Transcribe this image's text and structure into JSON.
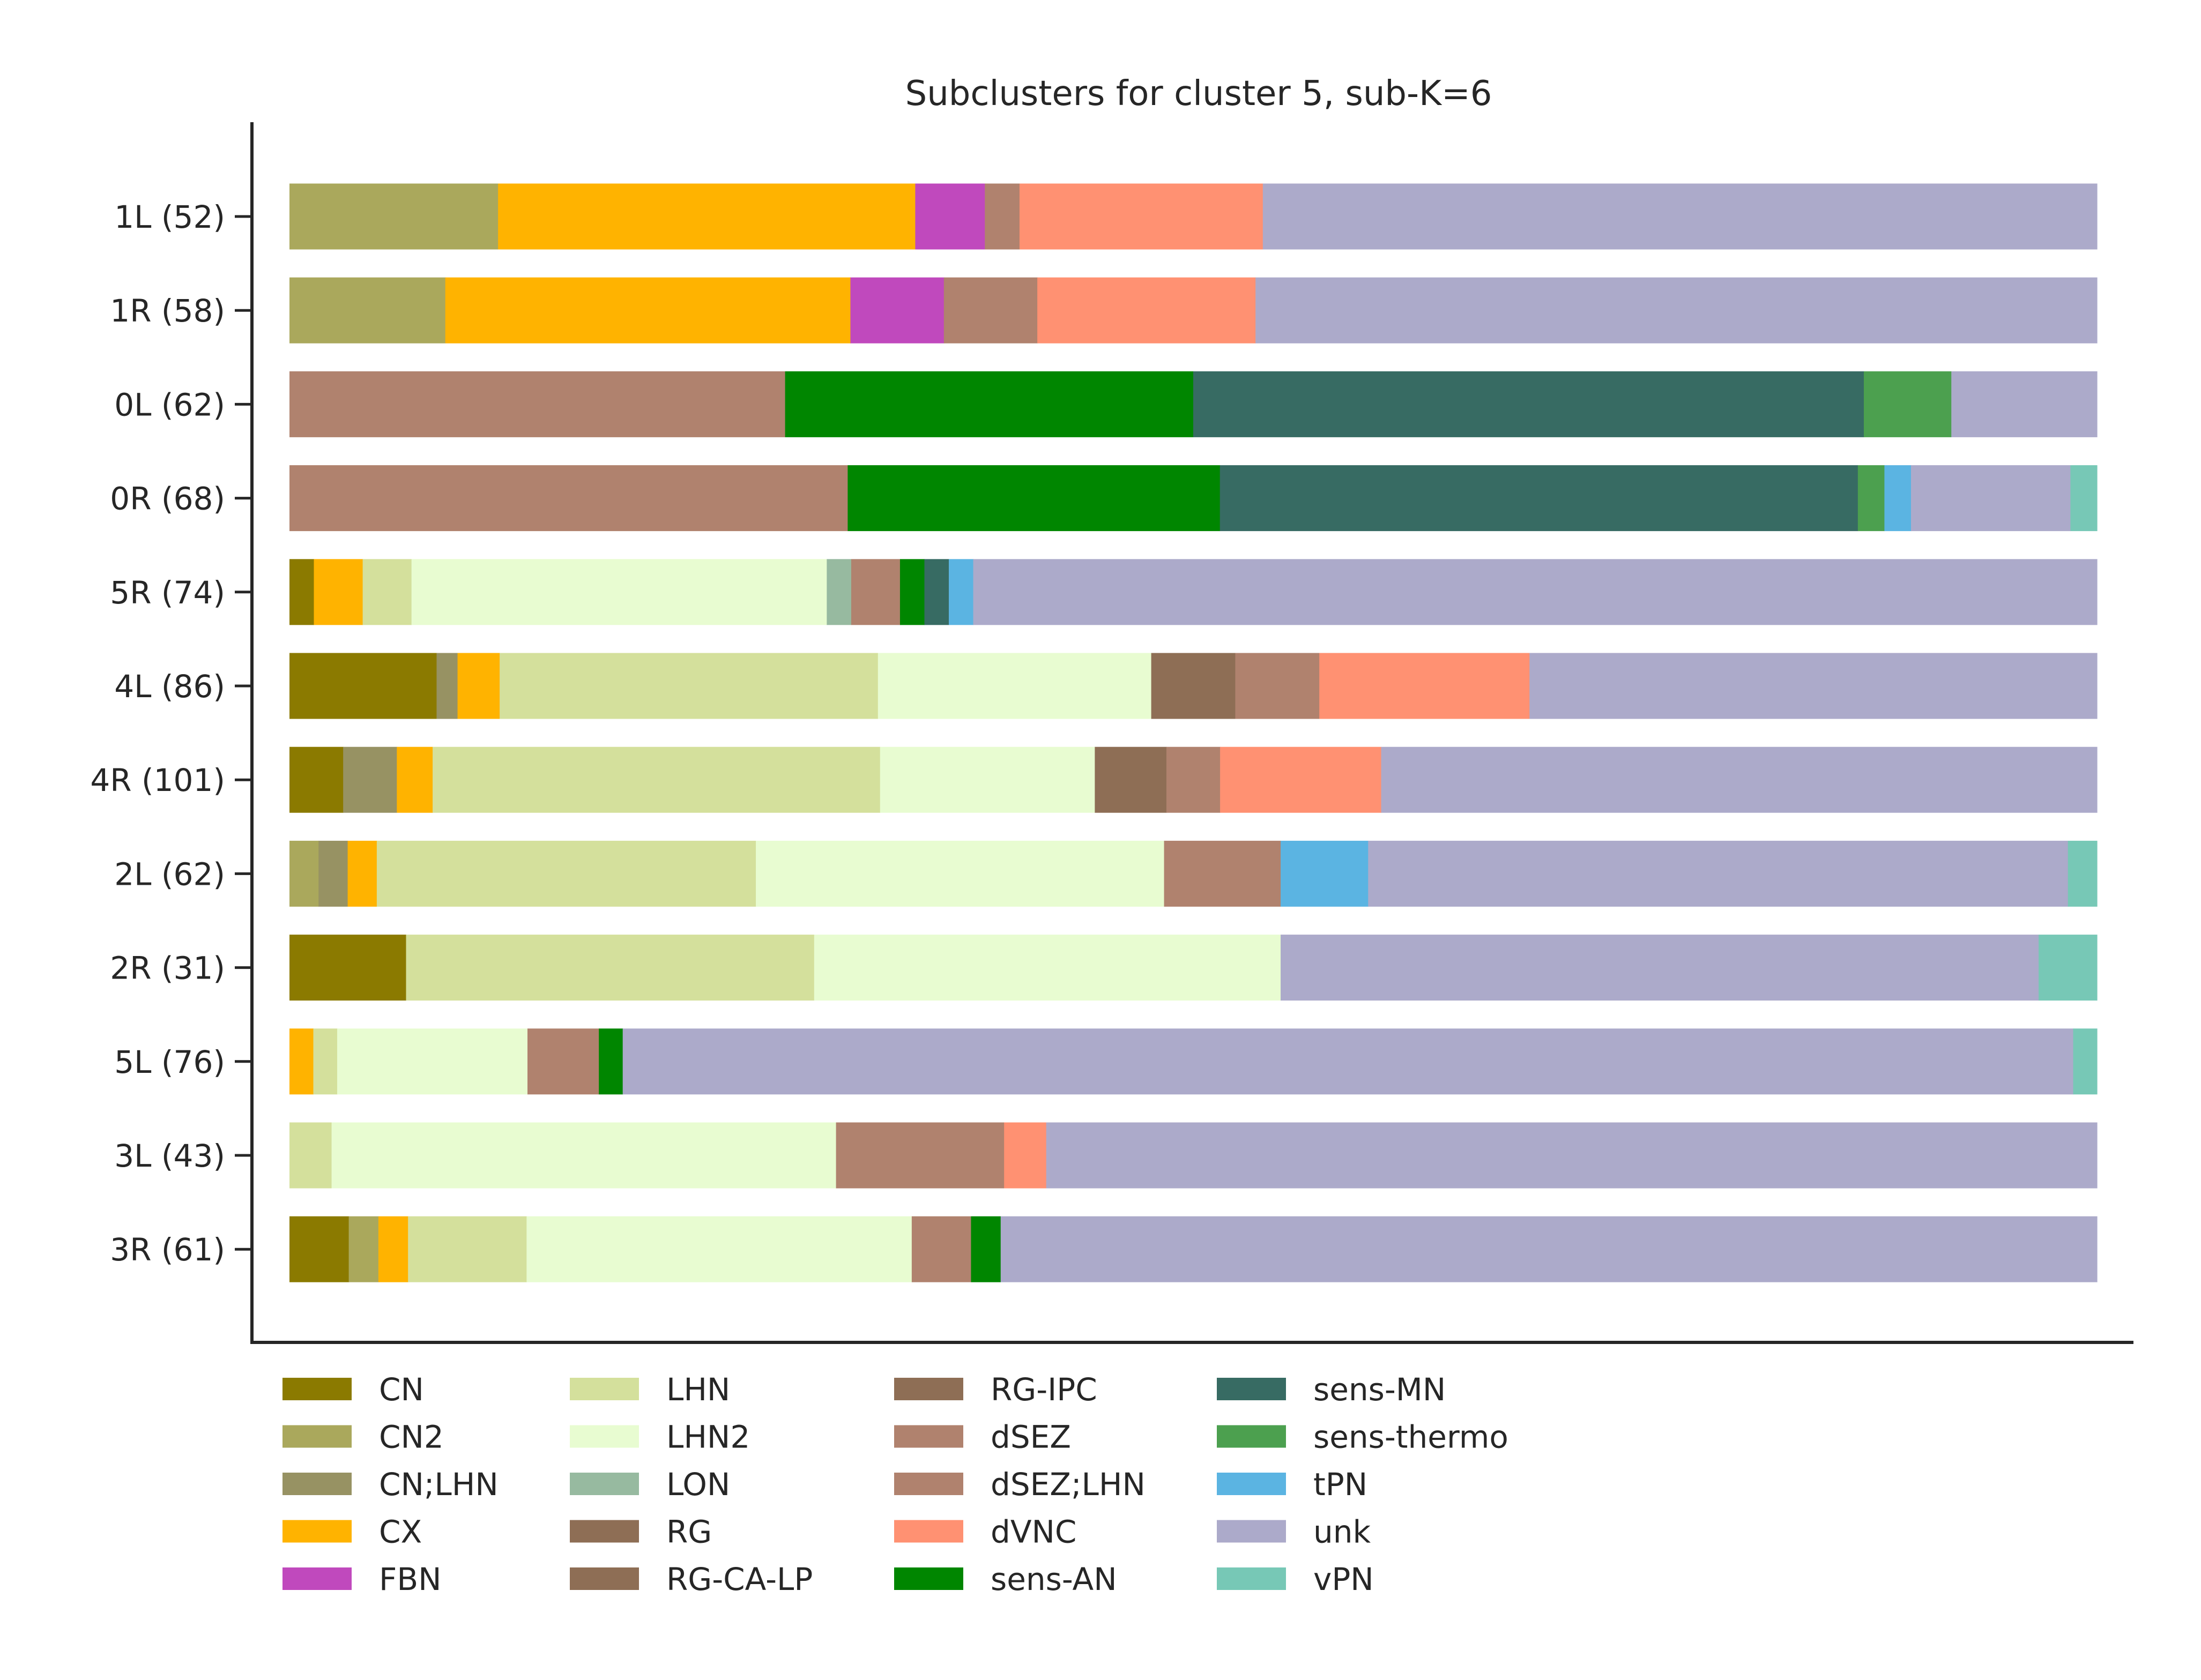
{
  "chart_data": {
    "type": "bar",
    "orientation": "horizontal",
    "stacked": true,
    "normalized": true,
    "title": "Subclusters for cluster 5, sub-K=6",
    "xlabel": "",
    "ylabel": "",
    "xlim": [
      0,
      1
    ],
    "grid": false,
    "legend_position": "bottom",
    "categories": [
      "1L (52)",
      "1R (58)",
      "0L (62)",
      "0R (68)",
      "5R (74)",
      "4L (86)",
      "4R (101)",
      "2L (62)",
      "2R (31)",
      "5L (76)",
      "3L (43)",
      "3R (61)"
    ],
    "series": [
      {
        "name": "CN",
        "color": "#8b7a00",
        "values": [
          0,
          0,
          0,
          0,
          0.0135,
          0.0814,
          0.0297,
          0,
          0.0645,
          0,
          0,
          0.0328
        ]
      },
      {
        "name": "CN2",
        "color": "#aaa85c",
        "values": [
          0.1154,
          0.0862,
          0,
          0,
          0,
          0,
          0,
          0.0161,
          0,
          0,
          0,
          0.0164
        ]
      },
      {
        "name": "CN;LHN",
        "color": "#979263",
        "values": [
          0,
          0,
          0,
          0,
          0,
          0.0116,
          0.0297,
          0.0161,
          0,
          0,
          0,
          0
        ]
      },
      {
        "name": "CX",
        "color": "#ffb300",
        "values": [
          0.2308,
          0.2241,
          0,
          0,
          0.027,
          0.0233,
          0.0198,
          0.0161,
          0,
          0.0132,
          0,
          0.0164
        ]
      },
      {
        "name": "FBN",
        "color": "#c049bd",
        "values": [
          0.0385,
          0.0517,
          0,
          0,
          0,
          0,
          0,
          0,
          0,
          0,
          0,
          0
        ]
      },
      {
        "name": "LHN",
        "color": "#d4e09c",
        "values": [
          0,
          0,
          0,
          0,
          0.027,
          0.2093,
          0.2475,
          0.2097,
          0.2258,
          0.0132,
          0.0233,
          0.0656
        ]
      },
      {
        "name": "LHN2",
        "color": "#e8fcd1",
        "values": [
          0,
          0,
          0,
          0,
          0.2297,
          0.1512,
          0.1188,
          0.2258,
          0.2581,
          0.1053,
          0.2791,
          0.2131
        ]
      },
      {
        "name": "LON",
        "color": "#97baa0",
        "values": [
          0,
          0,
          0,
          0,
          0.0135,
          0,
          0,
          0,
          0,
          0,
          0,
          0
        ]
      },
      {
        "name": "RG",
        "color": "#8e6e55",
        "values": [
          0,
          0,
          0,
          0,
          0,
          0,
          0,
          0,
          0,
          0,
          0,
          0
        ]
      },
      {
        "name": "RG-CA-LP",
        "color": "#8e6e55",
        "values": [
          0,
          0,
          0,
          0,
          0,
          0,
          0,
          0,
          0,
          0,
          0,
          0
        ]
      },
      {
        "name": "RG-IPC",
        "color": "#8e6e55",
        "values": [
          0,
          0,
          0,
          0,
          0,
          0.0465,
          0.0396,
          0,
          0,
          0,
          0,
          0
        ]
      },
      {
        "name": "dSEZ",
        "color": "#b0826e",
        "values": [
          0.0192,
          0.0517,
          0.2742,
          0.3088,
          0.027,
          0.0465,
          0.0297,
          0.0645,
          0,
          0.0395,
          0.093,
          0.0328
        ]
      },
      {
        "name": "dSEZ;LHN",
        "color": "#b0826e",
        "values": [
          0,
          0,
          0,
          0,
          0,
          0,
          0,
          0,
          0,
          0,
          0,
          0
        ]
      },
      {
        "name": "dVNC",
        "color": "#ff9172",
        "values": [
          0.1346,
          0.1207,
          0,
          0,
          0,
          0.1163,
          0.0891,
          0,
          0,
          0,
          0.0233,
          0
        ]
      },
      {
        "name": "sens-AN",
        "color": "#008600",
        "values": [
          0,
          0,
          0.2258,
          0.2059,
          0.0135,
          0,
          0,
          0,
          0,
          0.0132,
          0,
          0.0164
        ]
      },
      {
        "name": "sens-MN",
        "color": "#376b63",
        "values": [
          0,
          0,
          0.371,
          0.3529,
          0.0135,
          0,
          0,
          0,
          0,
          0,
          0,
          0
        ]
      },
      {
        "name": "sens-thermo",
        "color": "#4ca04f",
        "values": [
          0,
          0,
          0.0484,
          0.0147,
          0,
          0,
          0,
          0,
          0,
          0,
          0,
          0
        ]
      },
      {
        "name": "tPN",
        "color": "#5bb4e2",
        "values": [
          0,
          0,
          0,
          0.0147,
          0.0135,
          0,
          0,
          0.0484,
          0,
          0,
          0,
          0
        ]
      },
      {
        "name": "unk",
        "color": "#acaaca",
        "values": [
          0.4615,
          0.4655,
          0.0806,
          0.0882,
          0.6216,
          0.314,
          0.396,
          0.3871,
          0.4194,
          0.8026,
          0.5814,
          0.6066
        ]
      },
      {
        "name": "vPN",
        "color": "#77c8b6",
        "values": [
          0,
          0,
          0,
          0.0147,
          0,
          0,
          0,
          0.0161,
          0.0323,
          0.0132,
          0,
          0
        ]
      }
    ]
  }
}
